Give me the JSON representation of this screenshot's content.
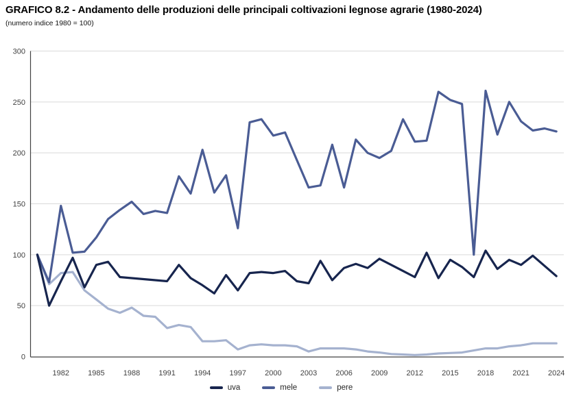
{
  "chart_data": {
    "type": "line",
    "title": "GRAFICO 8.2 - Andamento delle produzioni delle principali coltivazioni legnose agrarie (1980-2024)",
    "subtitle": "(numero indice 1980 = 100)",
    "x": [
      1980,
      1981,
      1982,
      1983,
      1984,
      1985,
      1986,
      1987,
      1988,
      1989,
      1990,
      1991,
      1992,
      1993,
      1994,
      1995,
      1996,
      1997,
      1998,
      1999,
      2000,
      2001,
      2002,
      2003,
      2004,
      2005,
      2006,
      2007,
      2008,
      2009,
      2010,
      2011,
      2012,
      2013,
      2014,
      2015,
      2016,
      2017,
      2018,
      2019,
      2020,
      2021,
      2022,
      2023,
      2024
    ],
    "xticks": [
      1982,
      1985,
      1988,
      1991,
      1994,
      1997,
      2000,
      2003,
      2006,
      2009,
      2012,
      2015,
      2018,
      2021,
      2024
    ],
    "yticks": [
      0,
      50,
      100,
      150,
      200,
      250,
      300
    ],
    "ylim": [
      0,
      300
    ],
    "grid": true,
    "legend_position": "bottom",
    "series": [
      {
        "name": "uva",
        "color": "#17254e",
        "values": [
          100,
          50,
          74,
          97,
          68,
          90,
          93,
          78,
          77,
          76,
          75,
          74,
          90,
          77,
          70,
          62,
          80,
          65,
          82,
          83,
          82,
          84,
          74,
          72,
          94,
          75,
          87,
          91,
          87,
          96,
          90,
          84,
          78,
          102,
          77,
          95,
          88,
          78,
          104,
          86,
          95,
          90,
          99,
          89,
          79
        ]
      },
      {
        "name": "mele",
        "color": "#4a5c94",
        "values": [
          100,
          73,
          148,
          102,
          103,
          117,
          135,
          144,
          152,
          140,
          143,
          141,
          177,
          160,
          203,
          161,
          178,
          126,
          230,
          233,
          217,
          220,
          193,
          166,
          168,
          208,
          166,
          213,
          200,
          195,
          202,
          233,
          211,
          212,
          260,
          252,
          248,
          100,
          261,
          218,
          250,
          231,
          222,
          224,
          221
        ]
      },
      {
        "name": "pere",
        "color": "#a5b2cf",
        "values": [
          100,
          71,
          82,
          83,
          65,
          56,
          47,
          43,
          48,
          40,
          39,
          28,
          31,
          29,
          15,
          15,
          16,
          7,
          11,
          12,
          11,
          11,
          10,
          5,
          8,
          8,
          8,
          7,
          5,
          4,
          2.5,
          2,
          1.5,
          2,
          3,
          3.5,
          4,
          6,
          8,
          8,
          10,
          11,
          13,
          13,
          13
        ]
      }
    ],
    "colors": {
      "gridline": "#d9d9d9",
      "axis": "#404040",
      "tick_label": "#404040"
    }
  }
}
